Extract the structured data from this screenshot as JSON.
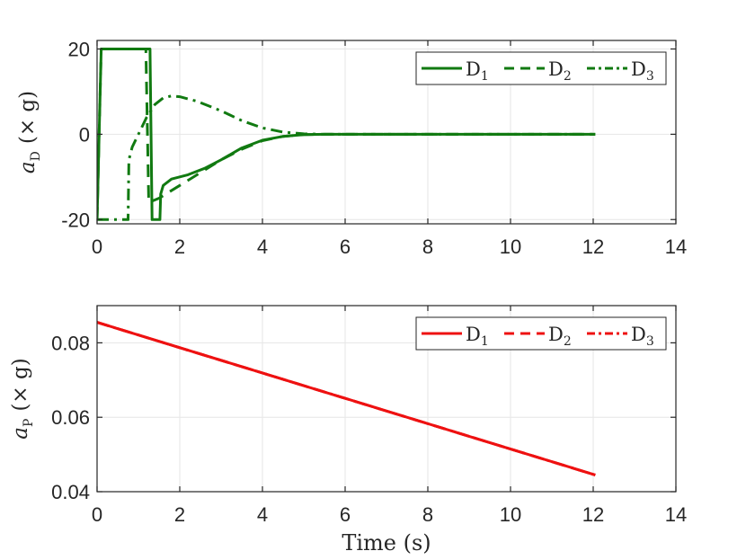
{
  "chart_data": [
    {
      "type": "line",
      "title": "",
      "xlabel": "",
      "ylabel": {
        "main": "a",
        "sub": "D",
        "unit": "(× g)"
      },
      "xlim": [
        0,
        14
      ],
      "ylim": [
        -21,
        22
      ],
      "xticks": [
        0,
        2,
        4,
        6,
        8,
        10,
        12,
        14
      ],
      "yticks": [
        -20,
        0,
        20
      ],
      "ytick_labels": [
        "-20",
        "0",
        "20"
      ],
      "grid": true,
      "legend_placement": "top-right",
      "series": [
        {
          "name": "D₁",
          "name_main": "D",
          "name_sub": "1",
          "style": "solid",
          "color": "#117a11",
          "points": [
            [
              0.0,
              -20
            ],
            [
              0.1,
              20
            ],
            [
              1.25,
              20
            ],
            [
              1.28,
              20
            ],
            [
              1.33,
              -20
            ],
            [
              1.52,
              -20
            ],
            [
              1.54,
              -14
            ],
            [
              1.6,
              -12
            ],
            [
              1.8,
              -10.5
            ],
            [
              2.2,
              -9.5
            ],
            [
              2.6,
              -8
            ],
            [
              3.0,
              -6
            ],
            [
              3.5,
              -3.2
            ],
            [
              4.0,
              -1.4
            ],
            [
              4.5,
              -0.5
            ],
            [
              5.0,
              -0.1
            ],
            [
              5.5,
              0
            ],
            [
              12.05,
              0
            ]
          ]
        },
        {
          "name": "D₂",
          "name_main": "D",
          "name_sub": "2",
          "style": "dashed",
          "color": "#117a11",
          "points": [
            [
              0.0,
              -20
            ],
            [
              0.1,
              20
            ],
            [
              1.15,
              20
            ],
            [
              1.18,
              20
            ],
            [
              1.25,
              -16
            ],
            [
              1.5,
              -15
            ],
            [
              2.0,
              -12
            ],
            [
              2.5,
              -9
            ],
            [
              3.0,
              -6
            ],
            [
              3.5,
              -3.5
            ],
            [
              4.0,
              -1.5
            ],
            [
              4.5,
              -0.5
            ],
            [
              5.0,
              -0.1
            ],
            [
              5.5,
              0
            ],
            [
              12.05,
              0
            ]
          ]
        },
        {
          "name": "D₃",
          "name_main": "D",
          "name_sub": "3",
          "style": "dashdot",
          "color": "#117a11",
          "points": [
            [
              0.0,
              -20
            ],
            [
              0.75,
              -20
            ],
            [
              0.77,
              -6
            ],
            [
              0.85,
              -3
            ],
            [
              1.0,
              0
            ],
            [
              1.2,
              4
            ],
            [
              1.4,
              7
            ],
            [
              1.6,
              8.5
            ],
            [
              1.8,
              9
            ],
            [
              2.0,
              8.8
            ],
            [
              2.4,
              7.8
            ],
            [
              3.0,
              5.5
            ],
            [
              3.5,
              3.2
            ],
            [
              4.0,
              1.5
            ],
            [
              4.5,
              0.5
            ],
            [
              5.0,
              0.1
            ],
            [
              5.5,
              0
            ],
            [
              12.05,
              0
            ]
          ]
        }
      ]
    },
    {
      "type": "line",
      "title": "",
      "xlabel": "Time (s)",
      "ylabel": {
        "main": "a",
        "sub": "P",
        "unit": "(× g)"
      },
      "xlim": [
        0,
        14
      ],
      "ylim": [
        0.04,
        0.09
      ],
      "xticks": [
        0,
        2,
        4,
        6,
        8,
        10,
        12,
        14
      ],
      "yticks": [
        0.04,
        0.06,
        0.08
      ],
      "ytick_labels": [
        "0.04",
        "0.06",
        "0.08"
      ],
      "grid": true,
      "legend_placement": "top-right",
      "series": [
        {
          "name": "D₁",
          "name_main": "D",
          "name_sub": "1",
          "style": "solid",
          "color": "#ee1111",
          "points": [
            [
              0,
              0.0855
            ],
            [
              12.05,
              0.0445
            ]
          ]
        },
        {
          "name": "D₂",
          "name_main": "D",
          "name_sub": "2",
          "style": "dashed",
          "color": "#ee1111",
          "points": [
            [
              0,
              0.0855
            ],
            [
              12.05,
              0.0445
            ]
          ]
        },
        {
          "name": "D₃",
          "name_main": "D",
          "name_sub": "3",
          "style": "dashdot",
          "color": "#ee1111",
          "points": [
            [
              0,
              0.0855
            ],
            [
              12.05,
              0.0445
            ]
          ]
        }
      ]
    }
  ]
}
